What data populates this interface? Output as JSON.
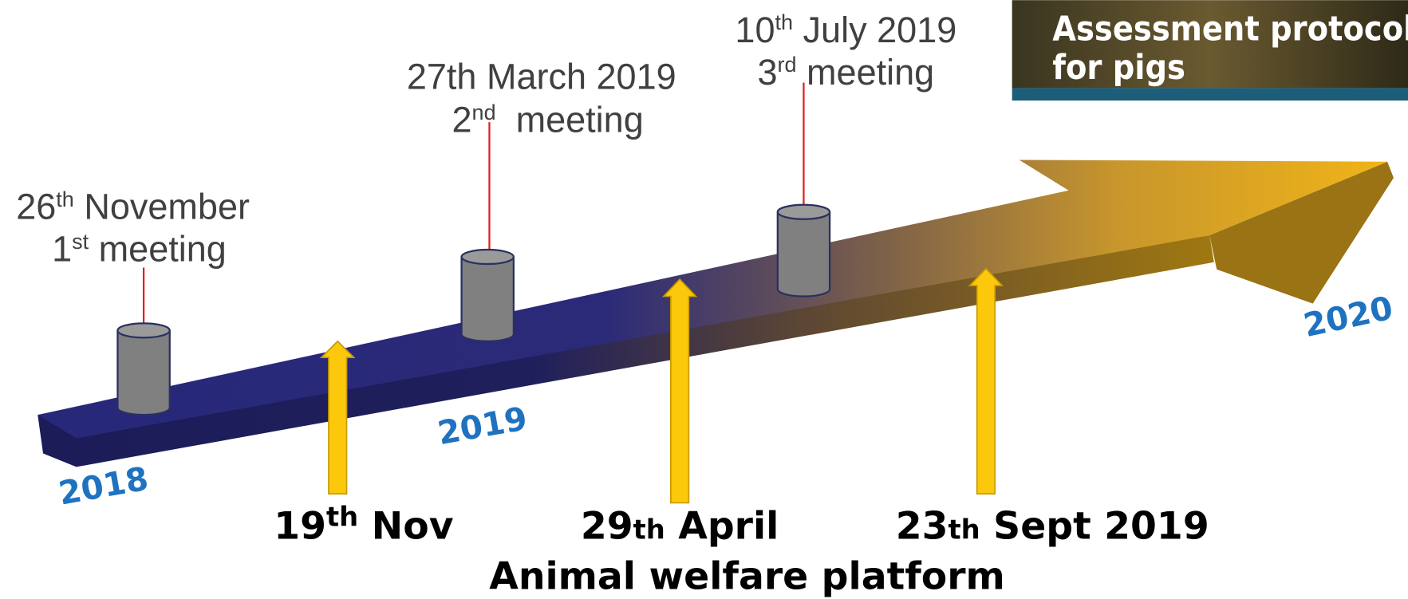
{
  "meetings": [
    {
      "date": [
        "26",
        "th",
        " November"
      ],
      "label": [
        "1",
        "st",
        " meeting"
      ]
    },
    {
      "date": [
        "27th March 2019"
      ],
      "label": [
        "2",
        "nd",
        "  meeting"
      ]
    },
    {
      "date": [
        "10",
        "th",
        " July 2019"
      ],
      "label": [
        "3",
        "rd",
        " meeting"
      ]
    }
  ],
  "platform_events": [
    [
      "19",
      "th",
      " Nov"
    ],
    [
      "29",
      "th",
      " April"
    ],
    [
      "23",
      "th",
      " Sept 2019"
    ]
  ],
  "years": [
    "2018",
    "2019",
    "2020"
  ],
  "image_caption": [
    "Assessment protocol",
    "for pigs"
  ],
  "footer": "Animal welfare platform"
}
